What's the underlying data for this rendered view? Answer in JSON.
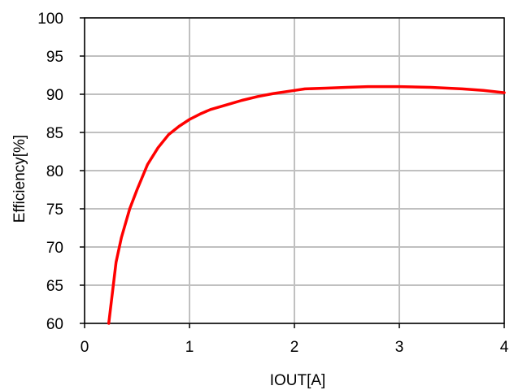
{
  "chart_data": {
    "type": "line",
    "title": "",
    "xlabel": "IOUT[A]",
    "ylabel": "Efficiency[%]",
    "xlim": [
      0,
      4
    ],
    "ylim": [
      60,
      100
    ],
    "x_ticks": [
      "0",
      "1",
      "2",
      "3",
      "4"
    ],
    "y_ticks": [
      "60",
      "65",
      "70",
      "75",
      "80",
      "85",
      "90",
      "95",
      "100"
    ],
    "grid": true,
    "legend": "none",
    "series": [
      {
        "color": "#ff0000",
        "x": [
          0.23,
          0.3,
          0.35,
          0.43,
          0.5,
          0.6,
          0.7,
          0.8,
          0.9,
          1.0,
          1.1,
          1.2,
          1.35,
          1.5,
          1.65,
          1.8,
          2.0,
          2.1,
          2.3,
          2.5,
          2.7,
          3.0,
          3.3,
          3.6,
          3.8,
          4.0
        ],
        "y": [
          60.0,
          68.0,
          71.2,
          75.0,
          77.5,
          80.8,
          83.0,
          84.7,
          85.8,
          86.7,
          87.4,
          88.0,
          88.6,
          89.2,
          89.7,
          90.1,
          90.5,
          90.7,
          90.8,
          90.9,
          91.0,
          91.0,
          90.9,
          90.7,
          90.5,
          90.2
        ]
      }
    ]
  },
  "colors": {
    "line": "#ff0000",
    "grid": "#c0c0c0",
    "axis": "#000000"
  }
}
